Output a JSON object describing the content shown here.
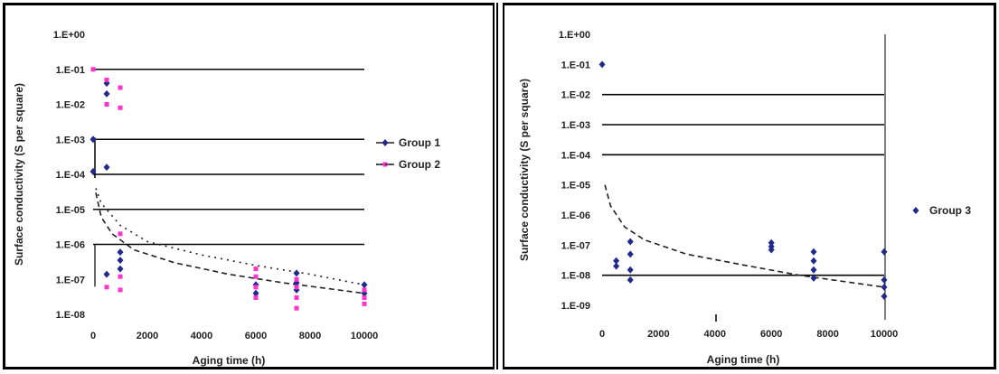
{
  "chart_data": [
    {
      "type": "scatter",
      "title": "",
      "xlabel": "Aging time (h)",
      "ylabel": "Surface conductivity (S per square)",
      "x_ticks": [
        "0",
        "2000",
        "4000",
        "6000",
        "8000",
        "10000"
      ],
      "y_ticks": [
        "1.E+00",
        "1.E-01",
        "1.E-02",
        "1.E-03",
        "1.E-04",
        "1.E-05",
        "1.E-06",
        "1.E-07",
        "1.E-08"
      ],
      "xlim": [
        0,
        10000
      ],
      "ylim": [
        1e-08,
        1
      ],
      "y_scale": "log",
      "grid": "horizontal major lines at 1.E-01, 1.E-03, 1.E-04, 1.E-05, 1.E-06",
      "legend_position": "right",
      "series": [
        {
          "name": "Group 1",
          "marker": "diamond",
          "color": "#1f2a8c",
          "points": [
            [
              0,
              0.001
            ],
            [
              0,
              0.00012
            ],
            [
              500,
              0.04
            ],
            [
              500,
              0.02
            ],
            [
              500,
              0.00016
            ],
            [
              500,
              1.4e-07
            ],
            [
              1000,
              6e-07
            ],
            [
              1000,
              3.5e-07
            ],
            [
              1000,
              2e-07
            ],
            [
              6000,
              7e-08
            ],
            [
              6000,
              4e-08
            ],
            [
              7500,
              1.5e-07
            ],
            [
              7500,
              8e-08
            ],
            [
              7500,
              5e-08
            ],
            [
              10000,
              7e-08
            ],
            [
              10000,
              4e-08
            ]
          ]
        },
        {
          "name": "Group 2",
          "marker": "square",
          "color": "#ff33cc",
          "points": [
            [
              0,
              0.1
            ],
            [
              500,
              0.05
            ],
            [
              500,
              0.01
            ],
            [
              500,
              6e-08
            ],
            [
              1000,
              0.03
            ],
            [
              1000,
              0.008
            ],
            [
              1000,
              2e-06
            ],
            [
              1000,
              1.2e-07
            ],
            [
              1000,
              5e-08
            ],
            [
              6000,
              2e-07
            ],
            [
              6000,
              1.2e-07
            ],
            [
              6000,
              6e-08
            ],
            [
              6000,
              3e-08
            ],
            [
              7500,
              1e-07
            ],
            [
              7500,
              6e-08
            ],
            [
              7500,
              3e-08
            ],
            [
              7500,
              1.5e-08
            ],
            [
              10000,
              5e-08
            ],
            [
              10000,
              3e-08
            ],
            [
              10000,
              2e-08
            ]
          ]
        }
      ],
      "trendlines": [
        {
          "series": "Group 1",
          "style": "dashed",
          "color": "#222222",
          "points": [
            [
              100,
              3e-05
            ],
            [
              300,
              6e-06
            ],
            [
              700,
              2e-06
            ],
            [
              1500,
              7e-07
            ],
            [
              3000,
              3e-07
            ],
            [
              5000,
              1.4e-07
            ],
            [
              7000,
              8e-08
            ],
            [
              10000,
              4e-08
            ]
          ]
        },
        {
          "series": "Group 2",
          "style": "dotted",
          "color": "#222222",
          "points": [
            [
              100,
              4e-05
            ],
            [
              300,
              1.5e-05
            ],
            [
              1000,
              3.5e-06
            ],
            [
              2000,
              1.2e-06
            ],
            [
              4000,
              5e-07
            ],
            [
              6000,
              2.5e-07
            ],
            [
              8000,
              1.4e-07
            ],
            [
              10000,
              7e-08
            ]
          ]
        }
      ]
    },
    {
      "type": "scatter",
      "title": "",
      "xlabel": "Aging time (h)",
      "ylabel": "Surface conductivity (S per square)",
      "x_ticks": [
        "0",
        "2000",
        "4000",
        "6000",
        "8000",
        "10000"
      ],
      "y_ticks": [
        "1.E+00",
        "1.E-01",
        "1.E-02",
        "1.E-03",
        "1.E-04",
        "1.E-05",
        "1.E-06",
        "1.E-07",
        "1.E-08",
        "1.E-09"
      ],
      "xlim": [
        0,
        10000
      ],
      "ylim": [
        1e-09,
        1
      ],
      "y_scale": "log",
      "grid": "horizontal major lines at 1.E-02, 1.E-03, 1.E-04, 1.E-08",
      "legend_position": "right",
      "series": [
        {
          "name": "Group 3",
          "marker": "diamond",
          "color": "#1f2a8c",
          "points": [
            [
              0,
              0.1
            ],
            [
              500,
              3e-08
            ],
            [
              500,
              2e-08
            ],
            [
              1000,
              1.3e-07
            ],
            [
              1000,
              5e-08
            ],
            [
              1000,
              1.5e-08
            ],
            [
              1000,
              7e-09
            ],
            [
              6000,
              1.2e-07
            ],
            [
              6000,
              9e-08
            ],
            [
              6000,
              7e-08
            ],
            [
              7500,
              6e-08
            ],
            [
              7500,
              3e-08
            ],
            [
              7500,
              1.5e-08
            ],
            [
              7500,
              8e-09
            ],
            [
              10000,
              6e-08
            ],
            [
              10000,
              7e-09
            ],
            [
              10000,
              4e-09
            ],
            [
              10000,
              2e-09
            ]
          ]
        }
      ],
      "trendlines": [
        {
          "series": "Group 3",
          "style": "dashed",
          "color": "#222222",
          "points": [
            [
              100,
              1e-05
            ],
            [
              300,
              2e-06
            ],
            [
              800,
              4e-07
            ],
            [
              1500,
              1.5e-07
            ],
            [
              3000,
              5e-08
            ],
            [
              5000,
              2.2e-08
            ],
            [
              7000,
              1e-08
            ],
            [
              10000,
              4e-09
            ]
          ]
        }
      ]
    }
  ]
}
